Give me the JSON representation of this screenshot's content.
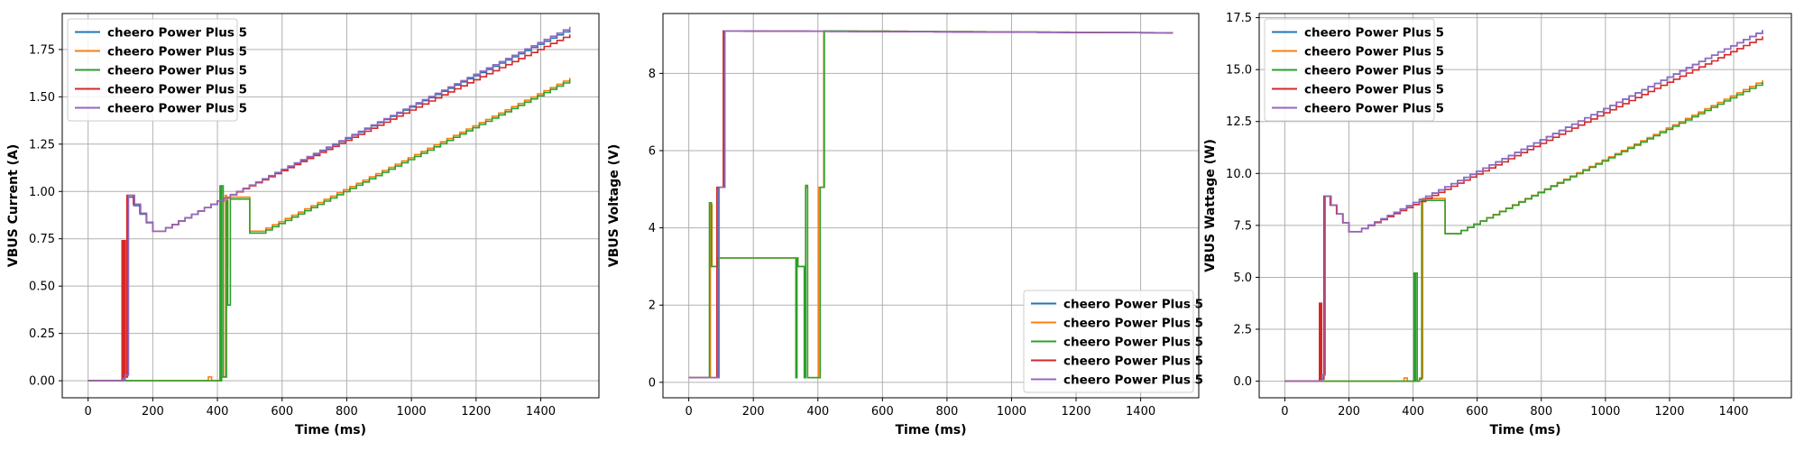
{
  "chart_data": [
    {
      "type": "line",
      "title": "",
      "xlabel": "Time (ms)",
      "ylabel": "VBUS Current (A)",
      "xlim": [
        -80,
        1580
      ],
      "ylim": [
        -0.09,
        1.94
      ],
      "xticks": [
        0,
        200,
        400,
        600,
        800,
        1000,
        1200,
        1400
      ],
      "xtick_labels": [
        "0",
        "200",
        "400",
        "600",
        "800",
        "1000",
        "1200",
        "1400"
      ],
      "yticks": [
        0,
        0.25,
        0.5,
        0.75,
        1.0,
        1.25,
        1.5,
        1.75
      ],
      "ytick_labels": [
        "0.00",
        "0.25",
        "0.50",
        "0.75",
        "1.00",
        "1.25",
        "1.50",
        "1.75"
      ],
      "grid": true,
      "legend_position": "top-left",
      "series": [
        {
          "name": "cheero Power Plus 5",
          "color": "#1f77b4",
          "x": [
            0,
            105,
            110,
            122,
            200,
            220,
            400,
            1490
          ],
          "y": [
            0,
            0,
            0.02,
            0.97,
            0.79,
            0.79,
            0.95,
            1.86
          ]
        },
        {
          "name": "cheero Power Plus 5",
          "color": "#ff7f0e",
          "x": [
            0,
            370,
            372,
            380,
            382,
            405,
            410,
            420,
            425,
            428,
            432,
            440,
            500,
            530,
            1490
          ],
          "y": [
            0,
            0,
            0.02,
            0.02,
            0,
            0,
            0.02,
            0.02,
            0.98,
            0.6,
            0.97,
            0.97,
            0.79,
            0.79,
            1.6
          ]
        },
        {
          "name": "cheero Power Plus 5",
          "color": "#2ca02c",
          "x": [
            0,
            405,
            408,
            410,
            413,
            418,
            425,
            428,
            432,
            440,
            500,
            530,
            1490
          ],
          "y": [
            0,
            0,
            1.03,
            0.0,
            1.03,
            0.02,
            0.02,
            0.95,
            0.4,
            0.96,
            0.78,
            0.78,
            1.59
          ]
        },
        {
          "name": "cheero Power Plus 5",
          "color": "#d62728",
          "x": [
            0,
            100,
            105,
            108,
            112,
            115,
            120,
            200,
            220,
            400,
            1490
          ],
          "y": [
            0,
            0,
            0.74,
            0.02,
            0.74,
            0.02,
            0.98,
            0.79,
            0.79,
            0.95,
            1.83
          ]
        },
        {
          "name": "cheero Power Plus 5",
          "color": "#9467bd",
          "x": [
            0,
            110,
            115,
            125,
            200,
            220,
            400,
            1490
          ],
          "y": [
            0,
            0,
            0.03,
            0.98,
            0.79,
            0.79,
            0.95,
            1.87
          ]
        }
      ]
    },
    {
      "type": "line",
      "title": "",
      "xlabel": "Time (ms)",
      "ylabel": "VBUS Voltage (V)",
      "xlim": [
        -80,
        1580
      ],
      "ylim": [
        -0.4,
        9.55
      ],
      "xticks": [
        0,
        200,
        400,
        600,
        800,
        1000,
        1200,
        1400
      ],
      "xtick_labels": [
        "0",
        "200",
        "400",
        "600",
        "800",
        "1000",
        "1200",
        "1400"
      ],
      "yticks": [
        0,
        2,
        4,
        6,
        8
      ],
      "ytick_labels": [
        "0",
        "2",
        "4",
        "6",
        "8"
      ],
      "grid": true,
      "legend_position": "bottom-right",
      "series": [
        {
          "name": "cheero Power Plus 5",
          "color": "#1f77b4",
          "x": [
            0,
            90,
            92,
            108,
            110,
            120,
            1500
          ],
          "y": [
            0.12,
            0.12,
            5.05,
            5.05,
            9.1,
            9.1,
            9.05
          ]
        },
        {
          "name": "cheero Power Plus 5",
          "color": "#ff7f0e",
          "x": [
            0,
            65,
            67,
            72,
            80,
            90,
            330,
            332,
            335,
            338,
            355,
            358,
            362,
            368,
            372,
            380,
            400,
            402,
            415,
            418,
            1500
          ],
          "y": [
            0.12,
            0.12,
            4.6,
            3.0,
            3.0,
            3.22,
            3.22,
            0.12,
            3.22,
            3.0,
            3.0,
            0.12,
            5.05,
            0.12,
            0.12,
            0.12,
            0.12,
            5.05,
            5.05,
            9.1,
            9.05
          ]
        },
        {
          "name": "cheero Power Plus 5",
          "color": "#2ca02c",
          "x": [
            0,
            62,
            64,
            70,
            80,
            90,
            330,
            332,
            335,
            338,
            355,
            358,
            362,
            368,
            372,
            380,
            405,
            407,
            418,
            420,
            1500
          ],
          "y": [
            0.12,
            0.12,
            4.65,
            3.0,
            3.0,
            3.22,
            3.22,
            0.12,
            3.22,
            3.0,
            3.0,
            0.12,
            5.1,
            0.12,
            0.12,
            0.12,
            0.12,
            5.05,
            5.05,
            9.1,
            9.05
          ]
        },
        {
          "name": "cheero Power Plus 5",
          "color": "#d62728",
          "x": [
            0,
            85,
            87,
            105,
            107,
            1500
          ],
          "y": [
            0.12,
            0.12,
            5.05,
            5.05,
            9.1,
            9.05
          ]
        },
        {
          "name": "cheero Power Plus 5",
          "color": "#9467bd",
          "x": [
            0,
            92,
            94,
            110,
            112,
            1500
          ],
          "y": [
            0.12,
            0.12,
            5.05,
            5.05,
            9.1,
            9.05
          ]
        }
      ]
    },
    {
      "type": "line",
      "title": "",
      "xlabel": "Time (ms)",
      "ylabel": "VBUS Wattage (W)",
      "xlim": [
        -80,
        1580
      ],
      "ylim": [
        -0.8,
        17.7
      ],
      "xticks": [
        0,
        200,
        400,
        600,
        800,
        1000,
        1200,
        1400
      ],
      "xtick_labels": [
        "0",
        "200",
        "400",
        "600",
        "800",
        "1000",
        "1200",
        "1400"
      ],
      "yticks": [
        0,
        2.5,
        5,
        7.5,
        10,
        12.5,
        15,
        17.5
      ],
      "ytick_labels": [
        "0.0",
        "2.5",
        "5.0",
        "7.5",
        "10.0",
        "12.5",
        "15.0",
        "17.5"
      ],
      "grid": true,
      "legend_position": "top-left",
      "series": [
        {
          "name": "cheero Power Plus 5",
          "color": "#1f77b4",
          "x": [
            0,
            110,
            115,
            125,
            200,
            220,
            400,
            1490
          ],
          "y": [
            0,
            0,
            0.3,
            8.9,
            7.2,
            7.2,
            8.6,
            16.9
          ]
        },
        {
          "name": "cheero Power Plus 5",
          "color": "#ff7f0e",
          "x": [
            0,
            370,
            372,
            380,
            382,
            410,
            420,
            425,
            430,
            440,
            500,
            530,
            1490
          ],
          "y": [
            0,
            0,
            0.15,
            0.15,
            0,
            0,
            0.15,
            0.15,
            8.8,
            8.8,
            7.1,
            7.1,
            14.5
          ]
        },
        {
          "name": "cheero Power Plus 5",
          "color": "#2ca02c",
          "x": [
            0,
            400,
            403,
            405,
            408,
            413,
            420,
            423,
            427,
            433,
            440,
            500,
            530,
            1490
          ],
          "y": [
            0,
            0,
            5.2,
            0.0,
            5.2,
            0.0,
            0.1,
            0.1,
            8.7,
            8.7,
            8.7,
            7.1,
            7.1,
            14.4
          ]
        },
        {
          "name": "cheero Power Plus 5",
          "color": "#d62728",
          "x": [
            0,
            105,
            108,
            110,
            113,
            115,
            122,
            200,
            220,
            400,
            1490
          ],
          "y": [
            0,
            0,
            3.75,
            0.1,
            3.75,
            0.1,
            8.9,
            7.2,
            7.2,
            8.5,
            16.6
          ]
        },
        {
          "name": "cheero Power Plus 5",
          "color": "#9467bd",
          "x": [
            0,
            112,
            117,
            126,
            200,
            220,
            400,
            1490
          ],
          "y": [
            0,
            0,
            0.3,
            8.9,
            7.2,
            7.2,
            8.6,
            16.9
          ]
        }
      ]
    }
  ]
}
